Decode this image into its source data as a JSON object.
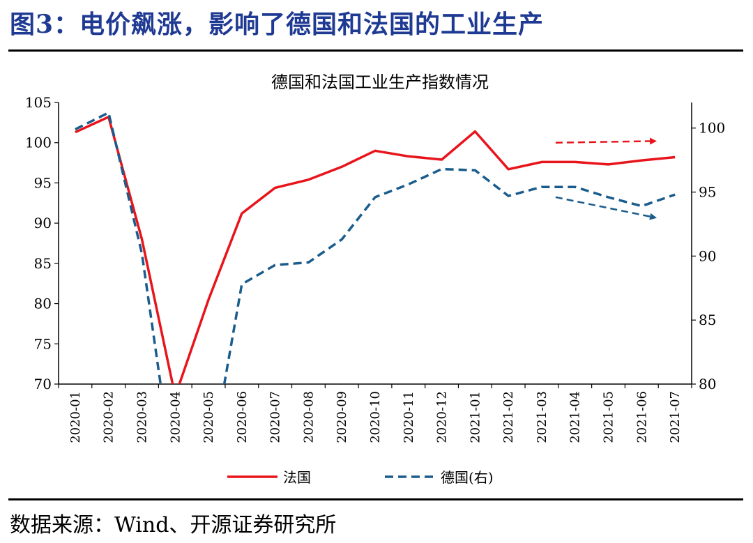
{
  "figure_title": "图3：电价飙涨，影响了德国和法国的工业生产",
  "source_text": "数据来源：Wind、开源证券研究所",
  "chart_data": {
    "type": "line",
    "title": "德国和法国工业生产指数情况",
    "x": [
      "2020-01",
      "2020-02",
      "2020-03",
      "2020-04",
      "2020-05",
      "2020-06",
      "2020-07",
      "2020-08",
      "2020-09",
      "2020-10",
      "2020-11",
      "2020-12",
      "2021-01",
      "2021-02",
      "2021-03",
      "2021-04",
      "2021-05",
      "2021-06",
      "2021-07"
    ],
    "left_axis": {
      "min": 70,
      "max": 105,
      "ticks": [
        "70",
        "75",
        "80",
        "85",
        "90",
        "95",
        "100",
        "105"
      ]
    },
    "right_axis": {
      "min": 80,
      "max": 102,
      "ticks": [
        "80",
        "85",
        "90",
        "95",
        "100"
      ]
    },
    "series": [
      {
        "name": "法国",
        "axis": "left",
        "color": "#e8141b",
        "style": "solid",
        "values": [
          101.3,
          103.2,
          88.0,
          68.5,
          80.5,
          91.2,
          94.4,
          95.4,
          97.0,
          99.0,
          98.3,
          97.9,
          101.4,
          96.7,
          97.6,
          97.6,
          97.3,
          97.8,
          98.2
        ]
      },
      {
        "name": "德国(右)",
        "axis": "right",
        "color": "#1a5c8c",
        "style": "dashed",
        "values": [
          99.9,
          101.2,
          90.2,
          72.0,
          73.0,
          87.8,
          89.3,
          89.5,
          91.3,
          94.6,
          95.6,
          96.8,
          96.7,
          94.7,
          95.4,
          95.4,
          94.6,
          93.9,
          94.8
        ]
      }
    ],
    "annotations": [
      {
        "type": "trend-arrow",
        "color": "#e8141b",
        "from": {
          "x": "2021-03",
          "y_left": 100.0
        },
        "to": {
          "x": "2021-07",
          "y_left": 100.2
        }
      },
      {
        "type": "trend-arrow",
        "color": "#1a5c8c",
        "from": {
          "x": "2021-03",
          "y_right": 94.6
        },
        "to": {
          "x": "2021-07",
          "y_right": 93.0
        }
      }
    ],
    "legend_position": "bottom",
    "grid": false
  }
}
